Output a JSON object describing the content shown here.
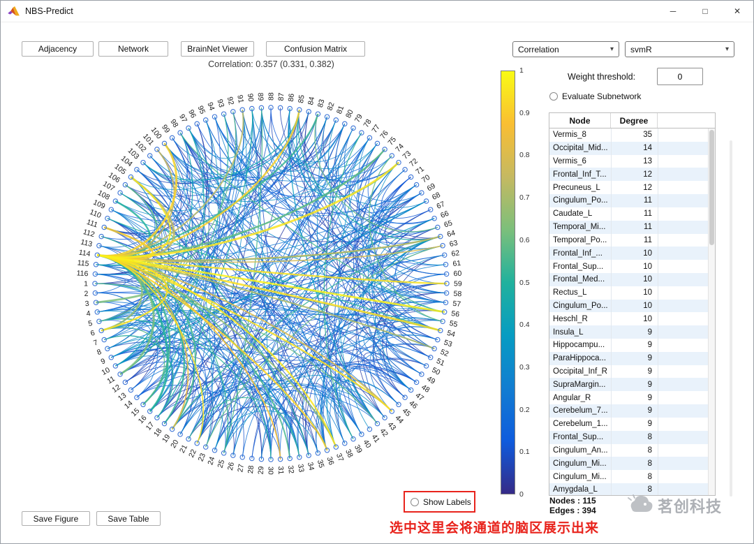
{
  "window": {
    "title": "NBS-Predict",
    "controls": {
      "minimize": "─",
      "maximize": "□",
      "close": "✕"
    }
  },
  "icons": {
    "dropdown_arrow": "▾"
  },
  "toolbar": {
    "buttons": [
      "Adjacency",
      "Network",
      "BrainNet Viewer",
      "Confusion Matrix"
    ]
  },
  "dropdowns": {
    "metric": "Correlation",
    "model": "svmR"
  },
  "plot": {
    "title": "Correlation: 0.357 (0.331, 0.382)",
    "node_count": 116,
    "edge_count": 394,
    "colorbar_ticks": [
      "1",
      "0.9",
      "0.8",
      "0.7",
      "0.6",
      "0.5",
      "0.4",
      "0.3",
      "0.2",
      "0.1",
      "0"
    ],
    "colormap": [
      {
        "t": 0,
        "c": "#352a87"
      },
      {
        "t": 0.125,
        "c": "#0f5cdd"
      },
      {
        "t": 0.25,
        "c": "#127dd1"
      },
      {
        "t": 0.375,
        "c": "#079cc2"
      },
      {
        "t": 0.5,
        "c": "#21b19d"
      },
      {
        "t": 0.625,
        "c": "#7cbf7b"
      },
      {
        "t": 0.75,
        "c": "#c5b961"
      },
      {
        "t": 0.875,
        "c": "#f9be33"
      },
      {
        "t": 1,
        "c": "#f9fb14"
      }
    ]
  },
  "controls": {
    "weight_threshold_label": "Weight threshold:",
    "weight_threshold_value": "0",
    "evaluate_subnetwork_label": "Evaluate Subnetwork",
    "show_labels_label": "Show Labels"
  },
  "table": {
    "headers": [
      "Node",
      "Degree"
    ],
    "rows": [
      [
        "Vermis_8",
        35
      ],
      [
        "Occipital_Mid...",
        14
      ],
      [
        "Vermis_6",
        13
      ],
      [
        "Frontal_Inf_T...",
        12
      ],
      [
        "Precuneus_L",
        12
      ],
      [
        "Cingulum_Po...",
        11
      ],
      [
        "Caudate_L",
        11
      ],
      [
        "Temporal_Mi...",
        11
      ],
      [
        "Temporal_Po...",
        11
      ],
      [
        "Frontal_Inf_...",
        10
      ],
      [
        "Frontal_Sup...",
        10
      ],
      [
        "Frontal_Med...",
        10
      ],
      [
        "Rectus_L",
        10
      ],
      [
        "Cingulum_Po...",
        10
      ],
      [
        "Heschl_R",
        10
      ],
      [
        "Insula_L",
        9
      ],
      [
        "Hippocampu...",
        9
      ],
      [
        "ParaHippoca...",
        9
      ],
      [
        "Occipital_Inf_R",
        9
      ],
      [
        "SupraMargin...",
        9
      ],
      [
        "Angular_R",
        9
      ],
      [
        "Cerebelum_7...",
        9
      ],
      [
        "Cerebelum_1...",
        9
      ],
      [
        "Frontal_Sup...",
        8
      ],
      [
        "Cingulum_An...",
        8
      ],
      [
        "Cingulum_Mi...",
        8
      ],
      [
        "Cingulum_Mi...",
        8
      ],
      [
        "Amygdala_L",
        8
      ]
    ]
  },
  "stats": {
    "nodes": "Nodes : 115",
    "edges": "Edges : 394"
  },
  "footer": {
    "buttons": [
      "Save Figure",
      "Save Table"
    ]
  },
  "annotation": {
    "text": "选中这里会将通道的脑区展示出来",
    "color": "#e8231c"
  },
  "watermark": {
    "text": "茗创科技"
  }
}
